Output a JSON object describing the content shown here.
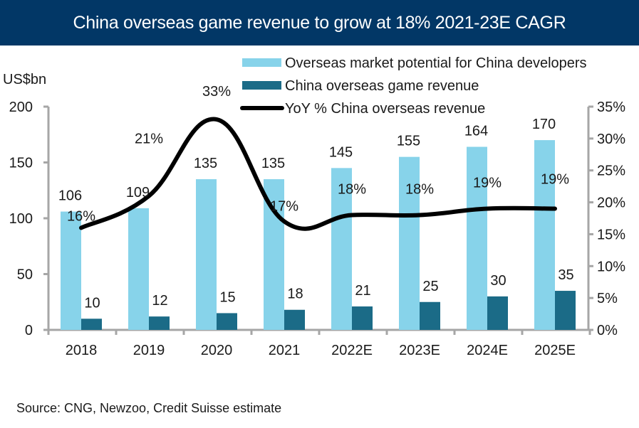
{
  "title": "China overseas game revenue to grow at 18% 2021-23E CAGR",
  "source": "Source: CNG, Newzoo, Credit Suisse estimate",
  "colors": {
    "header_bg": "#023766",
    "potential": "#87D3EA",
    "revenue": "#1B6B87",
    "yoy": "#000000",
    "axis": "#A6A6A6"
  },
  "chart_data": {
    "type": "bar",
    "title": "China overseas game revenue to grow at 18% 2021-23E CAGR",
    "xlabel": "",
    "ylabel": "US$bn",
    "ylabel_right": "",
    "categories": [
      "2018",
      "2019",
      "2020",
      "2021",
      "2022E",
      "2023E",
      "2024E",
      "2025E"
    ],
    "ylim": [
      0,
      200
    ],
    "yticks": [
      0,
      50,
      100,
      150,
      200
    ],
    "ylim_right": [
      0,
      35
    ],
    "yticks_right": [
      "0%",
      "5%",
      "10%",
      "15%",
      "20%",
      "25%",
      "30%",
      "35%"
    ],
    "yticks_right_values": [
      0,
      5,
      10,
      15,
      20,
      25,
      30,
      35
    ],
    "legend_position": "top-right",
    "grid": false,
    "series": [
      {
        "name": "Overseas market potential for China developers",
        "type": "bar",
        "axis": "left",
        "values": [
          106,
          109,
          135,
          135,
          145,
          155,
          164,
          170
        ],
        "labels": [
          "106",
          "109",
          "135",
          "135",
          "145",
          "155",
          "164",
          "170"
        ]
      },
      {
        "name": "China overseas game revenue",
        "type": "bar",
        "axis": "left",
        "values": [
          10,
          12,
          15,
          18,
          21,
          25,
          30,
          35
        ],
        "labels": [
          "10",
          "12",
          "15",
          "18",
          "21",
          "25",
          "30",
          "35"
        ]
      },
      {
        "name": "YoY % China overseas revenue",
        "type": "line",
        "axis": "right",
        "values": [
          16,
          21,
          33,
          17,
          18,
          18,
          19,
          19
        ],
        "labels": [
          "16%",
          "21%",
          "33%",
          "17%",
          "18%",
          "18%",
          "19%",
          "19%"
        ]
      }
    ]
  }
}
